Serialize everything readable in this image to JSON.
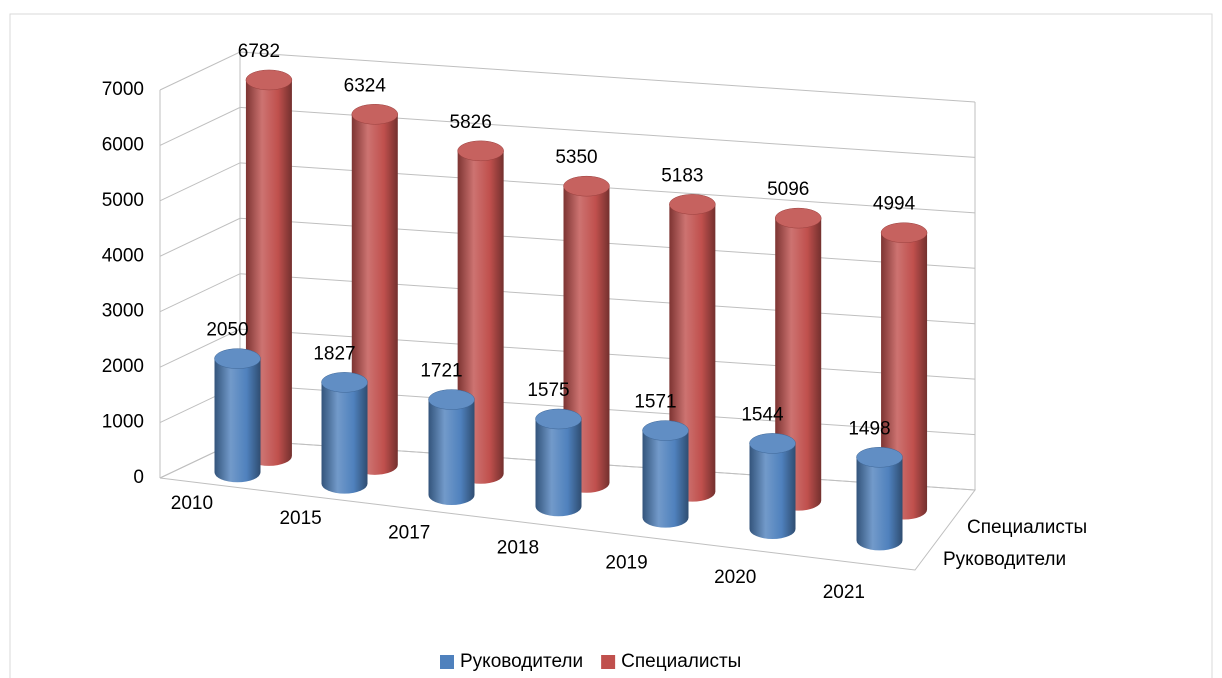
{
  "chart_data": {
    "type": "bar3d",
    "categories": [
      "2010",
      "2015",
      "2017",
      "2018",
      "2019",
      "2020",
      "2021"
    ],
    "series": [
      {
        "name": "Руководители",
        "color": "#4f81bd",
        "values": [
          2050,
          1827,
          1721,
          1575,
          1571,
          1544,
          1498
        ]
      },
      {
        "name": "Специалисты",
        "color": "#c0504d",
        "values": [
          6782,
          6324,
          5826,
          5350,
          5183,
          5096,
          4994
        ]
      }
    ],
    "ylim": [
      0,
      7000
    ],
    "yticks": [
      0,
      1000,
      2000,
      3000,
      4000,
      5000,
      6000,
      7000
    ],
    "grid": true,
    "legend": "bottom"
  }
}
